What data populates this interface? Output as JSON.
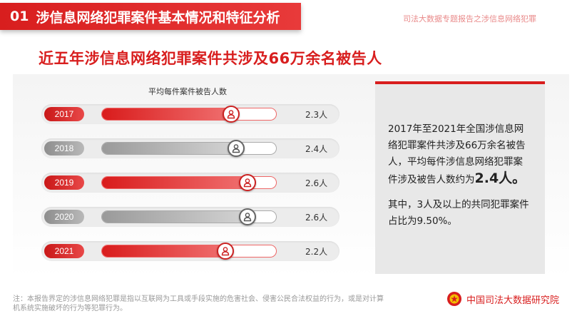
{
  "header": {
    "num": "01",
    "title": "涉信息网络犯罪案件基本情况和特征分析"
  },
  "report_tag": "司法大数据专题报告之涉信息网络犯罪",
  "subtitle": "近五年涉信息网络犯罪案件共涉及66万余名被告人",
  "chart_data": {
    "type": "bar",
    "title": "平均每件案件被告人数",
    "categories": [
      "2017",
      "2018",
      "2019",
      "2020",
      "2021"
    ],
    "values": [
      2.3,
      2.4,
      2.6,
      2.6,
      2.2
    ],
    "value_labels": [
      "2.3人",
      "2.4人",
      "2.6人",
      "2.6人",
      "2.2人"
    ],
    "styles": [
      "red",
      "gray",
      "red",
      "gray",
      "red"
    ],
    "xlim": [
      0,
      3.1
    ],
    "orientation": "horizontal"
  },
  "summary": {
    "p1_text": "2017年至2021年全国涉信息网络犯罪案件共涉及66万余名被告人，平均每件涉信息网络犯罪案件涉及被告人数约为",
    "p1_highlight": "2.4人。",
    "p2": "其中，3人及以上的共同犯罪案件占比为9.50%。"
  },
  "footnote": "注：本报告界定的涉信息网络犯罪是指以互联网为工具或手段实施的危害社会、侵害公民合法权益的行为，或是对计算机系统实施破坏的行为等犯罪行为。",
  "org_name": "中国司法大数据研究院",
  "colors": {
    "accent": "#d81e1e",
    "gray": "#9a9a9a"
  },
  "icons": {
    "marker": "person-icon",
    "logo": "emblem-icon"
  }
}
